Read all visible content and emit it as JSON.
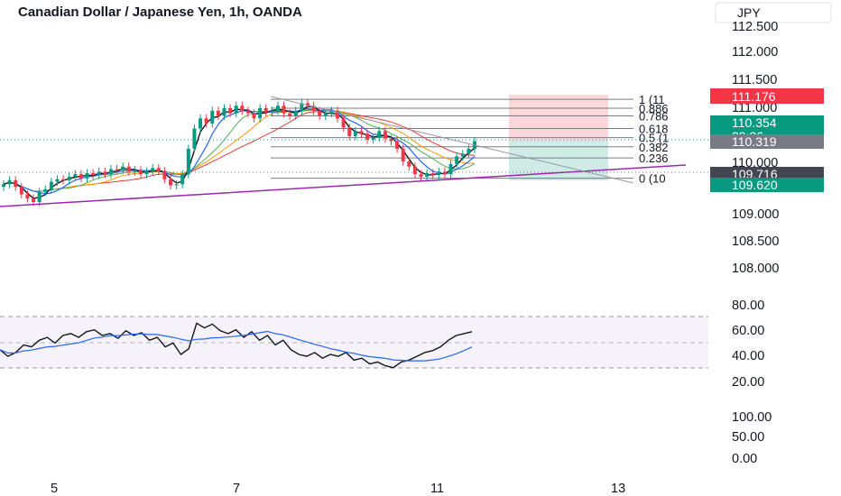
{
  "header": {
    "title": "Canadian Dollar / Japanese Yen, 1h, OANDA",
    "currency": "JPY"
  },
  "price_axis": {
    "ticks": [
      "112.500",
      "112.000",
      "111.500",
      "111.000",
      "110.000",
      "109.000",
      "108.500",
      "108.000"
    ]
  },
  "rsi_axis": {
    "ticks": [
      "80.00",
      "60.00",
      "40.00",
      "20.00"
    ]
  },
  "lower_axis": {
    "ticks": [
      "100.00",
      "50.00",
      "0.00"
    ]
  },
  "time_axis": {
    "ticks": [
      "5",
      "7",
      "11",
      "13"
    ]
  },
  "fib_labels": [
    "1 (11",
    "0.886",
    "0.786",
    "0.618",
    "0.5 (1",
    "0.382",
    "0.236",
    "0 (10"
  ],
  "price_tags": [
    {
      "value": "111.176",
      "color": "#f23645"
    },
    {
      "value": "110.354",
      "color": "#089981"
    },
    {
      "value": "22:26",
      "color": "#089981"
    },
    {
      "value": "110.319",
      "color": "#787b86"
    },
    {
      "value": "109.716",
      "color": "#434651"
    },
    {
      "value": "109.620",
      "color": "#089981"
    }
  ],
  "colors": {
    "bull": "#089981",
    "bear": "#f23645",
    "trendline": "#9c27b0",
    "rsi_band": "#7e57c2",
    "rsi_line": "#131722",
    "rsi_ma": "#2962ff"
  },
  "chart_data": {
    "type": "line",
    "symbol": "CADJPY",
    "interval": "1h",
    "price_range": [
      107.8,
      112.6
    ],
    "x_ticks": [
      "5",
      "7",
      "11",
      "13"
    ],
    "fibonacci": [
      {
        "level": 1,
        "price": 111.176
      },
      {
        "level": 0.886,
        "price": 111.0
      },
      {
        "level": 0.786,
        "price": 110.85
      },
      {
        "level": 0.618,
        "price": 110.6
      },
      {
        "level": 0.5,
        "price": 110.42
      },
      {
        "level": 0.382,
        "price": 110.24
      },
      {
        "level": 0.236,
        "price": 110.02
      },
      {
        "level": 0,
        "price": 109.62
      }
    ],
    "close_series": [
      109.5,
      109.58,
      109.45,
      109.3,
      109.22,
      109.15,
      109.35,
      109.4,
      109.55,
      109.6,
      109.58,
      109.65,
      109.7,
      109.62,
      109.72,
      109.68,
      109.75,
      109.7,
      109.8,
      109.78,
      109.85,
      109.75,
      109.78,
      109.7,
      109.75,
      109.82,
      109.76,
      109.6,
      109.48,
      109.5,
      109.7,
      110.2,
      110.6,
      110.8,
      110.7,
      110.95,
      110.85,
      111.0,
      110.9,
      111.05,
      110.95,
      110.9,
      110.8,
      111.0,
      110.92,
      110.95,
      111.05,
      110.9,
      110.85,
      110.95,
      111.1,
      111.05,
      110.95,
      110.85,
      110.9,
      110.95,
      110.8,
      110.62,
      110.45,
      110.55,
      110.5,
      110.38,
      110.42,
      110.55,
      110.4,
      110.35,
      110.2,
      109.95,
      109.85,
      109.7,
      109.65,
      109.72,
      109.68,
      109.75,
      109.7,
      109.9,
      110.05,
      110.1,
      110.2,
      110.35
    ],
    "rsi": {
      "range": [
        0,
        100
      ],
      "bands": [
        30,
        70
      ],
      "values": [
        45,
        38,
        42,
        50,
        48,
        55,
        58,
        52,
        60,
        62,
        58,
        64,
        66,
        60,
        62,
        57,
        65,
        60,
        63,
        55,
        58,
        48,
        52,
        40,
        46,
        73,
        68,
        72,
        65,
        62,
        66,
        58,
        64,
        55,
        60,
        50,
        55,
        45,
        40,
        38,
        42,
        36,
        40,
        38,
        42,
        34,
        36,
        30,
        32,
        28,
        26,
        32,
        34,
        38,
        42,
        44,
        48,
        55,
        60,
        62,
        64
      ]
    }
  }
}
